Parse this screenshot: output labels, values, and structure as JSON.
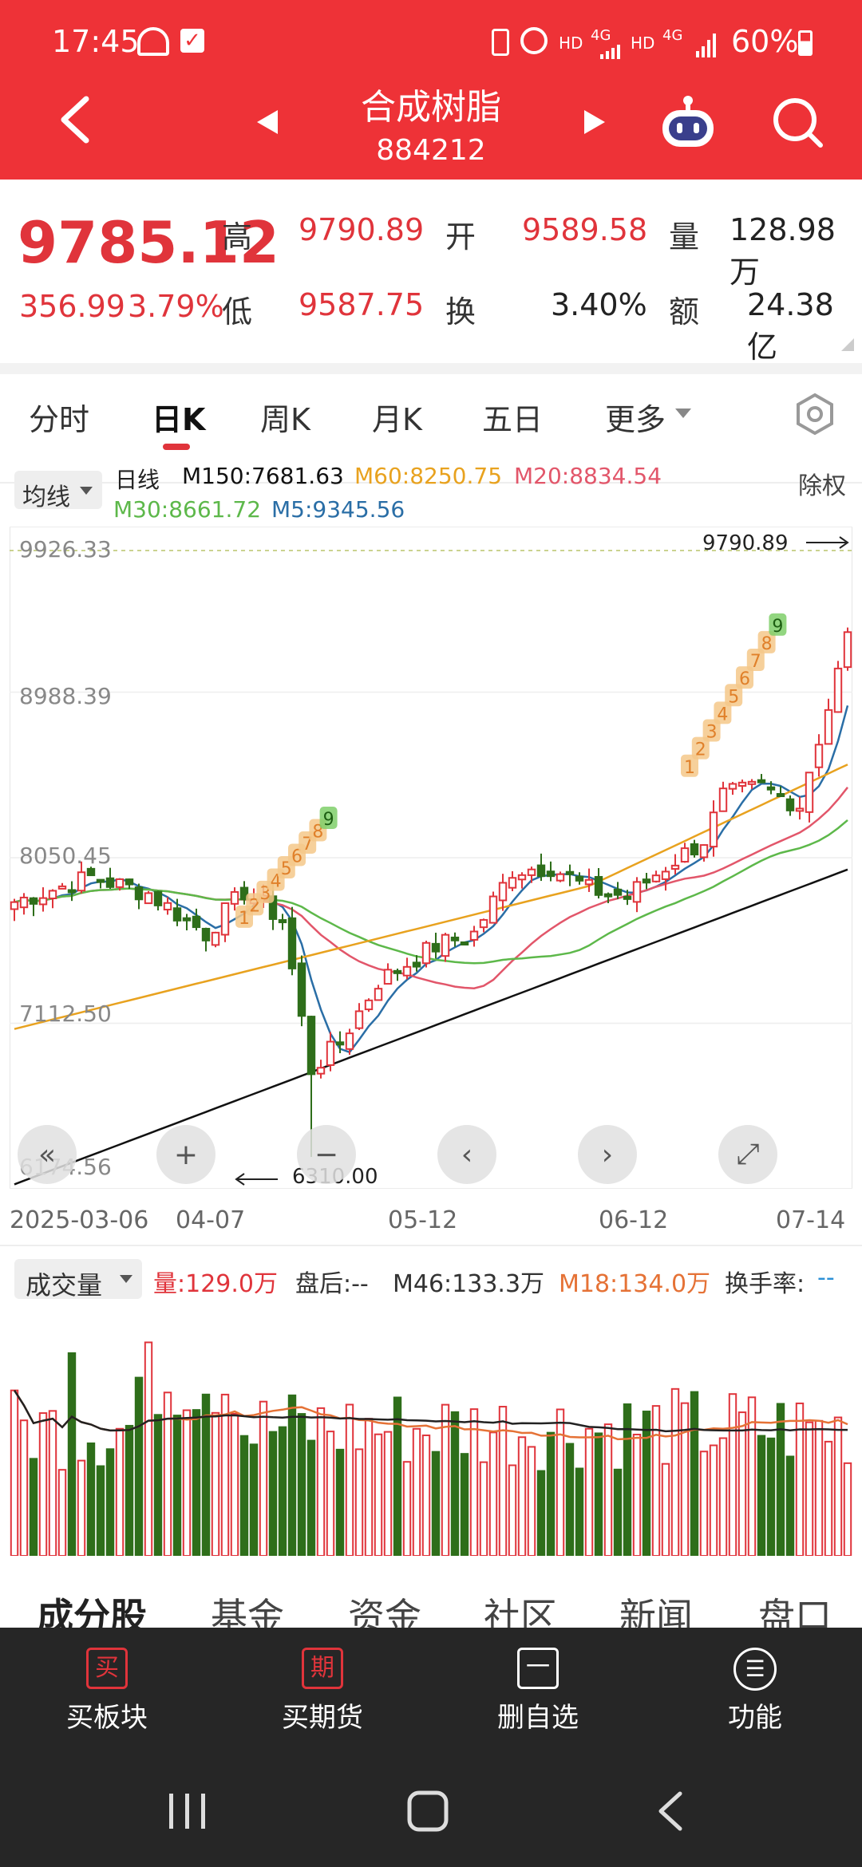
{
  "status": {
    "time": "17:45",
    "battery": "60%",
    "net1": "HD",
    "net2": "4G",
    "net3": "HD",
    "net4": "4G"
  },
  "nav": {
    "title": "合成树脂",
    "code": "884212"
  },
  "quote": {
    "price": "9785.12",
    "change": "356.99",
    "pct": "3.79%",
    "high_label": "高",
    "high": "9790.89",
    "low_label": "低",
    "low": "9587.75",
    "open_label": "开",
    "open": "9589.58",
    "turn_label": "换",
    "turn": "3.40%",
    "vol_label": "量",
    "vol": "128.98万",
    "amt_label": "额",
    "amt": "24.38亿"
  },
  "tabs": [
    "分时",
    "日K",
    "周K",
    "月K",
    "五日",
    "更多"
  ],
  "legend": {
    "ma_button": "均线",
    "type": "日线",
    "m150": "M150:7681.63",
    "m60": "M60:8250.75",
    "m20": "M20:8834.54",
    "m30": "M30:8661.72",
    "m5": "M5:9345.56",
    "fuquan": "除权"
  },
  "chart_data": {
    "type": "candlestick",
    "y_ticks": [
      "9926.33",
      "8988.39",
      "8050.45",
      "7112.50",
      "6174.56"
    ],
    "x_ticks": [
      "2025-03-06",
      "04-07",
      "05-12",
      "06-12",
      "07-14"
    ],
    "max_annotation": "9790.89",
    "min_annotation": "6310.00",
    "ylim": [
      6174.56,
      9926.33
    ],
    "td_counts_1": [
      "1",
      "2",
      "3",
      "4",
      "5",
      "6",
      "7",
      "8",
      "9"
    ],
    "td_counts_2": [
      "1",
      "2",
      "3",
      "4",
      "5",
      "6",
      "7",
      "8",
      "9"
    ],
    "colors": {
      "up": "#e0343b",
      "down": "#2e6e1a",
      "m5": "#2a6ea6",
      "m20": "#e2566a",
      "m30": "#5db84a",
      "m60": "#e8a21f",
      "m150": "#111111"
    }
  },
  "volume": {
    "button": "成交量",
    "vol": "量:129.0万",
    "after": "盘后:--",
    "m46": "M46:133.3万",
    "m18": "M18:134.0万",
    "turnover_label": "换手率:",
    "turnover_value": "--"
  },
  "bottom_tabs": [
    "成分股",
    "基金",
    "资金",
    "社区",
    "新闻",
    "盘口"
  ],
  "bottom_bar": [
    {
      "icon": "买",
      "label": "买板块"
    },
    {
      "icon": "期",
      "label": "买期货"
    },
    {
      "icon": "一",
      "label": "删自选"
    },
    {
      "icon": "☰",
      "label": "功能"
    }
  ]
}
